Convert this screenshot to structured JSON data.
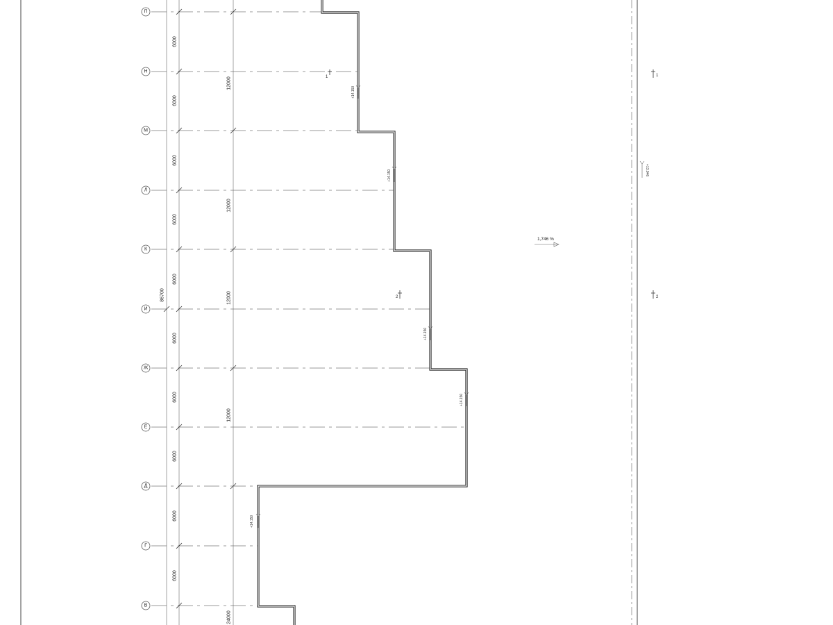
{
  "axes": {
    "rows": [
      {
        "id": "axis-p",
        "label": "П"
      },
      {
        "id": "axis-n",
        "label": "Н"
      },
      {
        "id": "axis-m",
        "label": "М"
      },
      {
        "id": "axis-l",
        "label": "Л"
      },
      {
        "id": "axis-k",
        "label": "К"
      },
      {
        "id": "axis-i",
        "label": "И"
      },
      {
        "id": "axis-zh",
        "label": "Ж"
      },
      {
        "id": "axis-e",
        "label": "Е"
      },
      {
        "id": "axis-d",
        "label": "Д"
      },
      {
        "id": "axis-g",
        "label": "Г"
      },
      {
        "id": "axis-v",
        "label": "В"
      }
    ]
  },
  "dimensions": {
    "inner": [
      "6000",
      "6000",
      "6000",
      "6000",
      "6000",
      "6000",
      "6000",
      "6000",
      "6000",
      "6000"
    ],
    "middle": [
      "12000",
      "12000",
      "12000",
      "12000",
      "24000"
    ],
    "overall": "86700"
  },
  "elevations": {
    "label": "+14.150",
    "right_frame_label": "+13.946"
  },
  "slope": {
    "label": "1,746 %"
  },
  "sections": [
    {
      "id": "section-1-left",
      "label": "1"
    },
    {
      "id": "section-1-right",
      "label": "1"
    },
    {
      "id": "section-2-left",
      "label": "2"
    },
    {
      "id": "section-2-right",
      "label": "2"
    }
  ]
}
